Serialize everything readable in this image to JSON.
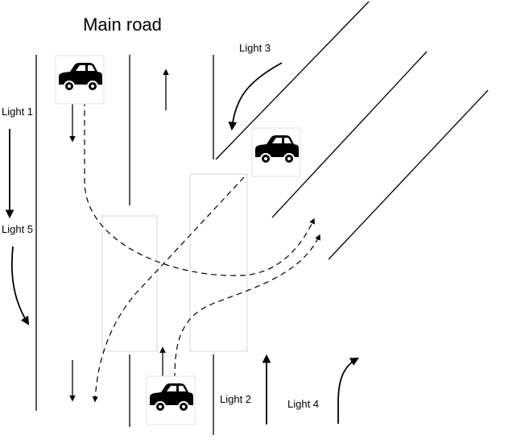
{
  "title": "Main road",
  "lights": [
    {
      "id": "light-1",
      "label": "Light 1"
    },
    {
      "id": "light-2",
      "label": "Light 2"
    },
    {
      "id": "light-3",
      "label": "Light 3"
    },
    {
      "id": "light-4",
      "label": "Light 4"
    },
    {
      "id": "light-5",
      "label": "Light 5"
    }
  ],
  "icons": [
    "car-icon",
    "arrow-icon",
    "crosswalk",
    "road-line",
    "dashed-path"
  ]
}
